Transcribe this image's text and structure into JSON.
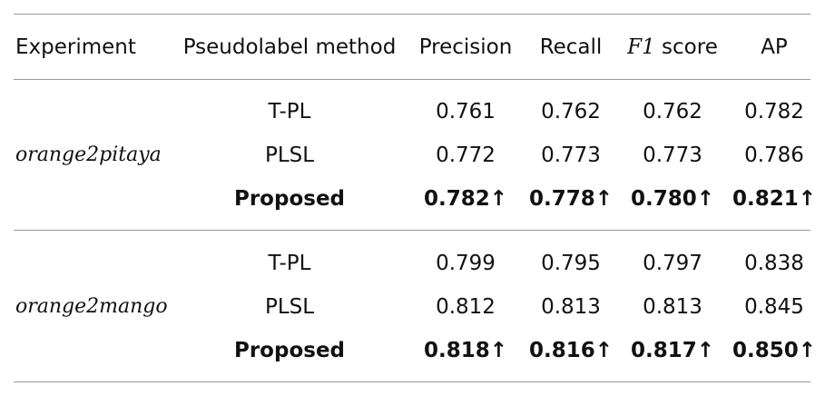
{
  "table": {
    "headers": {
      "experiment": "Experiment",
      "method": "Pseudolabel method",
      "precision": "Precision",
      "recall": "Recall",
      "f1_italic": "F1",
      "f1_rest": " score",
      "ap": "AP"
    },
    "groups": [
      {
        "experiment": "orange2pitaya",
        "rows": [
          {
            "method": "T-PL",
            "precision": "0.761",
            "recall": "0.762",
            "f1": "0.762",
            "ap": "0.782"
          },
          {
            "method": "PLSL",
            "precision": "0.772",
            "recall": "0.773",
            "f1": "0.773",
            "ap": "0.786"
          },
          {
            "method": "Proposed",
            "precision": "0.782↑",
            "recall": "0.778↑",
            "f1": "0.780↑",
            "ap": "0.821↑"
          }
        ]
      },
      {
        "experiment": "orange2mango",
        "rows": [
          {
            "method": "T-PL",
            "precision": "0.799",
            "recall": "0.795",
            "f1": "0.797",
            "ap": "0.838"
          },
          {
            "method": "PLSL",
            "precision": "0.812",
            "recall": "0.813",
            "f1": "0.813",
            "ap": "0.845"
          },
          {
            "method": "Proposed",
            "precision": "0.818↑",
            "recall": "0.816↑",
            "f1": "0.817↑",
            "ap": "0.850↑"
          }
        ]
      }
    ]
  }
}
